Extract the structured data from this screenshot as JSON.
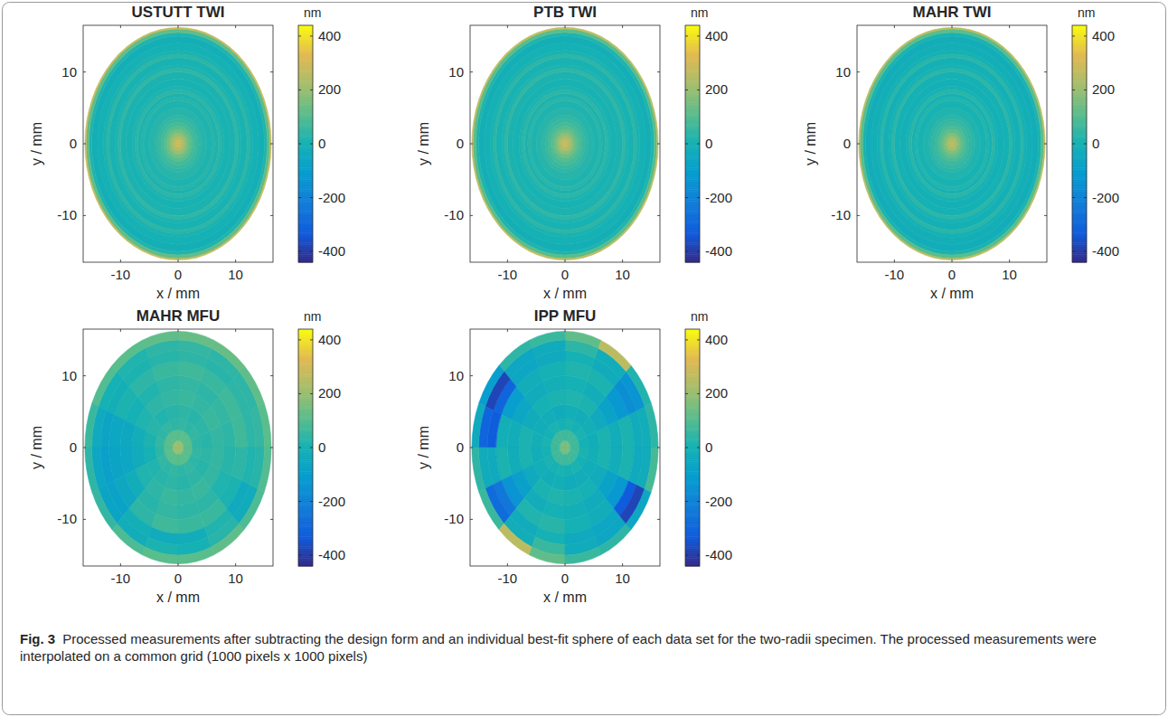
{
  "chart_data": [
    {
      "type": "heatmap",
      "title": "USTUTT TWI",
      "xlabel": "x / mm",
      "ylabel": "y / mm",
      "xlim": [
        -16.5,
        16.5
      ],
      "ylim": [
        -16.5,
        16.5
      ],
      "xticks": [
        -10,
        0,
        10
      ],
      "yticks": [
        -10,
        0,
        10
      ],
      "r_edges": [
        0,
        0.5,
        1,
        1.5,
        2,
        2.5,
        3,
        3.5,
        4,
        5,
        6,
        6.5,
        7,
        7.5,
        8,
        9,
        10,
        10.5,
        11,
        12,
        12.5,
        13,
        14,
        15,
        15.5,
        16,
        16.2
      ],
      "cells": [
        [
          300
        ],
        [
          250
        ],
        [
          200
        ],
        [
          150
        ],
        [
          110
        ],
        [
          80
        ],
        [
          60
        ],
        [
          45
        ],
        [
          30
        ],
        [
          15
        ],
        [
          30
        ],
        [
          10
        ],
        [
          40
        ],
        [
          15
        ],
        [
          5
        ],
        [
          10
        ],
        [
          45
        ],
        [
          15
        ],
        [
          5
        ],
        [
          40
        ],
        [
          10
        ],
        [
          0
        ],
        [
          -10
        ],
        [
          20
        ],
        [
          120
        ],
        [
          280
        ]
      ],
      "colorbar": {
        "label": "nm",
        "range": [
          -440,
          440
        ],
        "ticks": [
          -400,
          -200,
          0,
          200,
          400
        ]
      }
    },
    {
      "type": "heatmap",
      "title": "PTB TWI",
      "xlabel": "x / mm",
      "ylabel": "y / mm",
      "xlim": [
        -16.5,
        16.5
      ],
      "ylim": [
        -16.5,
        16.5
      ],
      "xticks": [
        -10,
        0,
        10
      ],
      "yticks": [
        -10,
        0,
        10
      ],
      "r_edges": [
        0,
        0.5,
        1,
        1.5,
        2,
        2.5,
        3,
        3.5,
        4,
        5,
        6,
        6.5,
        7,
        7.5,
        8,
        9,
        10,
        10.5,
        11,
        12,
        12.5,
        13,
        14,
        15,
        15.5,
        16,
        16.2
      ],
      "cells": [
        [
          290
        ],
        [
          240
        ],
        [
          195
        ],
        [
          145
        ],
        [
          105
        ],
        [
          80
        ],
        [
          60
        ],
        [
          45
        ],
        [
          30
        ],
        [
          15
        ],
        [
          35
        ],
        [
          10
        ],
        [
          40
        ],
        [
          15
        ],
        [
          5
        ],
        [
          10
        ],
        [
          45
        ],
        [
          15
        ],
        [
          5
        ],
        [
          40
        ],
        [
          10
        ],
        [
          0
        ],
        [
          -10
        ],
        [
          20
        ],
        [
          110
        ],
        [
          270
        ]
      ],
      "colorbar": {
        "label": "nm",
        "range": [
          -440,
          440
        ],
        "ticks": [
          -400,
          -200,
          0,
          200,
          400
        ]
      }
    },
    {
      "type": "heatmap",
      "title": "MAHR TWI",
      "xlabel": "x / mm",
      "ylabel": "y / mm",
      "xlim": [
        -16.5,
        16.5
      ],
      "ylim": [
        -16.5,
        16.5
      ],
      "xticks": [
        -10,
        0,
        10
      ],
      "yticks": [
        -10,
        0,
        10
      ],
      "r_edges": [
        0,
        0.5,
        1,
        1.5,
        2,
        2.5,
        3,
        3.5,
        4,
        5,
        6,
        6.5,
        7,
        7.5,
        8,
        9,
        10,
        10.5,
        11,
        12,
        12.5,
        13,
        14,
        15,
        15.5,
        16,
        16.2
      ],
      "cells": [
        [
          260
        ],
        [
          220
        ],
        [
          170
        ],
        [
          125
        ],
        [
          90
        ],
        [
          65
        ],
        [
          50
        ],
        [
          35
        ],
        [
          20
        ],
        [
          5
        ],
        [
          25
        ],
        [
          0
        ],
        [
          35
        ],
        [
          5
        ],
        [
          -5
        ],
        [
          0
        ],
        [
          40
        ],
        [
          5
        ],
        [
          -5
        ],
        [
          35
        ],
        [
          0
        ],
        [
          -10
        ],
        [
          -20
        ],
        [
          10
        ],
        [
          110
        ],
        [
          260
        ]
      ],
      "colorbar": {
        "label": "nm",
        "range": [
          -440,
          440
        ],
        "ticks": [
          -400,
          -200,
          0,
          200,
          400
        ]
      }
    },
    {
      "type": "heatmap",
      "title": "MAHR MFU",
      "xlabel": "x / mm",
      "ylabel": "y / mm",
      "xlim": [
        -16.5,
        16.5
      ],
      "ylim": [
        -16.5,
        16.5
      ],
      "xticks": [
        -10,
        0,
        10
      ],
      "yticks": [
        -10,
        0,
        10
      ],
      "r_edges": [
        0,
        1,
        2.5,
        4,
        6,
        8,
        10,
        12,
        13.5,
        15,
        16.2
      ],
      "cells": [
        [
          200,
          200,
          200,
          200,
          200,
          200,
          200,
          200,
          200,
          200,
          200,
          200,
          200,
          200,
          200,
          200
        ],
        [
          110,
          110,
          110,
          110,
          110,
          110,
          110,
          110,
          110,
          110,
          110,
          110,
          110,
          110,
          110,
          110
        ],
        [
          40,
          50,
          40,
          50,
          40,
          50,
          40,
          50,
          40,
          50,
          40,
          50,
          40,
          50,
          40,
          50
        ],
        [
          30,
          40,
          30,
          40,
          30,
          20,
          30,
          10,
          0,
          20,
          30,
          40,
          30,
          40,
          30,
          40
        ],
        [
          50,
          60,
          50,
          60,
          50,
          40,
          20,
          -20,
          -30,
          20,
          40,
          60,
          50,
          60,
          50,
          50
        ],
        [
          40,
          50,
          40,
          50,
          40,
          20,
          0,
          -50,
          -60,
          -20,
          30,
          50,
          40,
          40,
          20,
          30
        ],
        [
          70,
          70,
          60,
          70,
          60,
          40,
          10,
          -60,
          -70,
          -50,
          40,
          70,
          60,
          60,
          10,
          40
        ],
        [
          40,
          40,
          30,
          40,
          30,
          10,
          -10,
          -70,
          -90,
          -80,
          -10,
          -30,
          -20,
          20,
          -40,
          20
        ],
        [
          50,
          40,
          40,
          50,
          40,
          20,
          0,
          -40,
          -60,
          -70,
          -20,
          10,
          0,
          30,
          -30,
          30
        ],
        [
          110,
          120,
          130,
          130,
          120,
          110,
          100,
          60,
          40,
          50,
          90,
          110,
          110,
          120,
          90,
          100
        ]
      ],
      "colorbar": {
        "label": "nm",
        "range": [
          -440,
          440
        ],
        "ticks": [
          -400,
          -200,
          0,
          200,
          400
        ]
      }
    },
    {
      "type": "heatmap",
      "title": "IPP MFU",
      "xlabel": "x / mm",
      "ylabel": "y / mm",
      "xlim": [
        -16.5,
        16.5
      ],
      "ylim": [
        -16.5,
        16.5
      ],
      "xticks": [
        -10,
        0,
        10
      ],
      "yticks": [
        -10,
        0,
        10
      ],
      "r_edges": [
        0,
        1,
        2.5,
        4,
        6,
        8,
        10,
        12,
        13.5,
        15,
        16.2
      ],
      "cells": [
        [
          150,
          150,
          150,
          150,
          150,
          150,
          150,
          150,
          150,
          150,
          150,
          150,
          150,
          150,
          150,
          150
        ],
        [
          70,
          70,
          70,
          70,
          70,
          70,
          70,
          70,
          70,
          70,
          70,
          70,
          70,
          70,
          70,
          70
        ],
        [
          0,
          10,
          0,
          10,
          0,
          10,
          0,
          10,
          0,
          10,
          0,
          10,
          0,
          10,
          0,
          10
        ],
        [
          -20,
          -10,
          -20,
          -10,
          -30,
          -20,
          -20,
          -10,
          -20,
          -10,
          -20,
          -10,
          -30,
          -20,
          -20,
          -10
        ],
        [
          10,
          -40,
          10,
          20,
          10,
          0,
          -30,
          10,
          10,
          -40,
          10,
          20,
          10,
          0,
          -30,
          10
        ],
        [
          -20,
          -80,
          -20,
          0,
          -10,
          -30,
          -60,
          -20,
          -20,
          -90,
          -20,
          0,
          -10,
          -30,
          -80,
          -20
        ],
        [
          10,
          -120,
          10,
          20,
          0,
          -20,
          -100,
          -10,
          10,
          -140,
          20,
          30,
          0,
          -20,
          -120,
          10
        ],
        [
          -30,
          -160,
          -30,
          0,
          -40,
          -60,
          -300,
          -330,
          -40,
          -240,
          -30,
          0,
          -40,
          -60,
          -330,
          -40
        ],
        [
          -20,
          -140,
          -20,
          40,
          -30,
          -60,
          -380,
          -300,
          -30,
          -280,
          -20,
          60,
          -30,
          -60,
          -380,
          -30
        ],
        [
          40,
          20,
          260,
          120,
          60,
          40,
          -100,
          -40,
          40,
          60,
          260,
          120,
          60,
          40,
          -60,
          80
        ]
      ],
      "colorbar": {
        "label": "nm",
        "range": [
          -440,
          440
        ],
        "ticks": [
          -400,
          -200,
          0,
          200,
          400
        ]
      }
    }
  ],
  "caption": {
    "label": "Fig. 3",
    "text": "Processed measurements after subtracting the design form and an individual best-fit sphere of each data set for the two-radii specimen. The processed measurements were interpolated on a common grid (1000 pixels x 1000 pixels)"
  }
}
